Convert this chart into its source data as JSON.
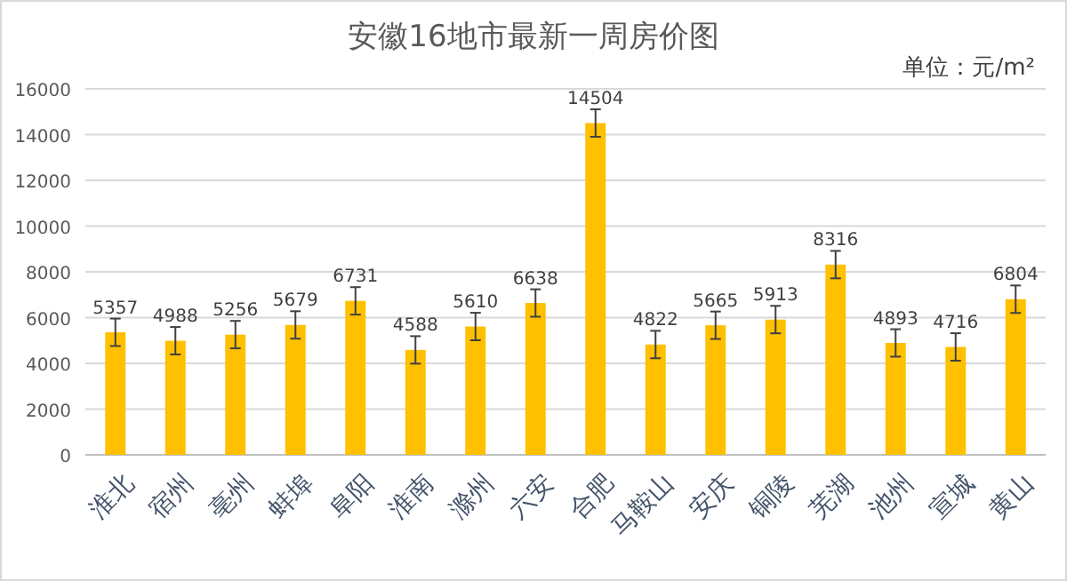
{
  "chart_data": {
    "type": "bar",
    "title": "安徽16地市最新一周房价图",
    "annotations": [
      "单位：元/m²"
    ],
    "categories": [
      "淮北",
      "宿州",
      "亳州",
      "蚌埠",
      "阜阳",
      "淮南",
      "滁州",
      "六安",
      "合肥",
      "马鞍山",
      "安庆",
      "铜陵",
      "芜湖",
      "池州",
      "宣城",
      "黄山"
    ],
    "values": [
      5357,
      4988,
      5256,
      5679,
      6731,
      4588,
      5610,
      6638,
      14504,
      4822,
      5665,
      5913,
      8316,
      4893,
      4716,
      6804
    ],
    "errors": [
      600,
      600,
      600,
      600,
      600,
      600,
      600,
      600,
      600,
      600,
      600,
      600,
      600,
      600,
      600,
      600
    ],
    "color": "#ffc000",
    "data_labels": true,
    "grid": "y",
    "ylim": [
      0,
      16000
    ],
    "yticks": [
      0,
      2000,
      4000,
      6000,
      8000,
      10000,
      12000,
      14000,
      16000
    ]
  }
}
